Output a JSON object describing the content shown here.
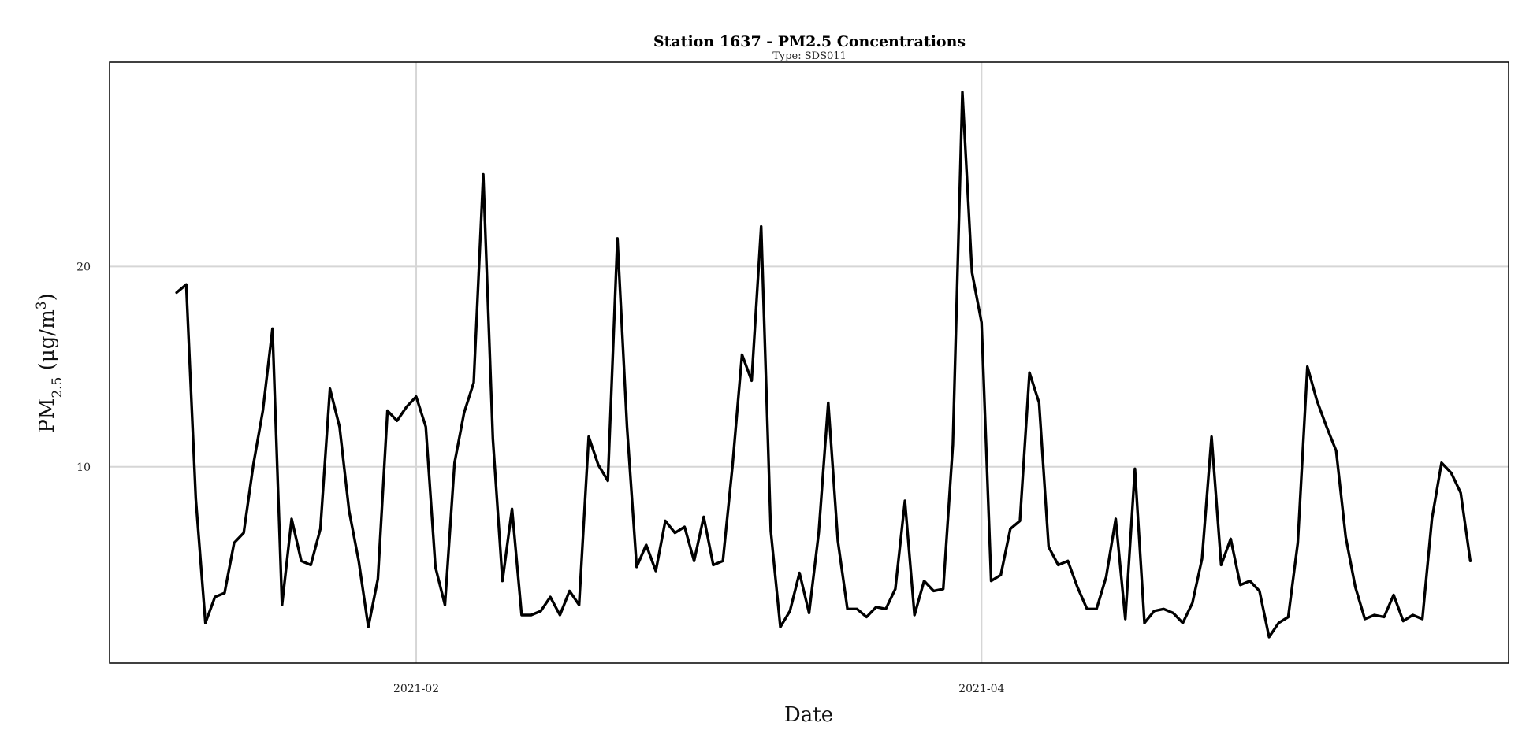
{
  "chart_data": {
    "type": "line",
    "title": "Station 1637 - PM2.5 Concentrations",
    "subtitle": "Type: SDS011",
    "xlabel": "Date",
    "ylabel": {
      "main": "PM",
      "sub": "2.5",
      "unit_prefix": " (μg/m",
      "unit_sup": "3",
      "unit_suffix": ")"
    },
    "x_start": "2021-01-07",
    "x_ticks": [
      {
        "label": "2021-02",
        "date": "2021-02-01"
      },
      {
        "label": "2021-04",
        "date": "2021-04-01"
      }
    ],
    "y_ticks": [
      10,
      20
    ],
    "ylim": [
      0.2,
      30.2
    ],
    "xlim": [
      "2020-12-31",
      "2021-05-26"
    ],
    "grid": true,
    "series": [
      {
        "values": [
          18.7,
          19.1,
          8.4,
          2.2,
          3.5,
          3.7,
          6.2,
          6.7,
          10.1,
          12.8,
          16.9,
          3.1,
          7.4,
          5.3,
          5.1,
          6.9,
          13.9,
          12.0,
          7.8,
          5.3,
          2.0,
          4.4,
          12.8,
          12.3,
          13.0,
          13.5,
          12.0,
          5.0,
          3.1,
          10.2,
          12.7,
          14.2,
          24.6,
          11.4,
          4.3,
          7.9,
          2.6,
          2.6,
          2.8,
          3.5,
          2.6,
          3.8,
          3.1,
          11.5,
          10.1,
          9.3,
          21.4,
          12.0,
          5.0,
          6.1,
          4.8,
          7.3,
          6.7,
          7.0,
          5.3,
          7.5,
          5.1,
          5.3,
          10.0,
          15.6,
          14.3,
          22.0,
          6.8,
          2.0,
          2.8,
          4.7,
          2.7,
          6.7,
          13.2,
          6.3,
          2.9,
          2.9,
          2.5,
          3.0,
          2.9,
          3.9,
          8.3,
          2.6,
          4.3,
          3.8,
          3.9,
          11.1,
          28.7,
          19.7,
          17.2,
          4.3,
          4.6,
          6.9,
          7.3,
          14.7,
          13.2,
          6.0,
          5.1,
          5.3,
          4.0,
          2.9,
          2.9,
          4.5,
          7.4,
          2.4,
          9.9,
          2.2,
          2.8,
          2.9,
          2.7,
          2.2,
          3.2,
          5.4,
          11.5,
          5.1,
          6.4,
          4.1,
          4.3,
          3.8,
          1.5,
          2.2,
          2.5,
          6.2,
          15.0,
          13.3,
          12.0,
          10.8,
          6.5,
          4.0,
          2.4,
          2.6,
          2.5,
          3.6,
          2.3,
          2.6,
          2.4,
          7.4,
          10.2,
          9.7,
          8.7,
          5.3
        ]
      }
    ]
  }
}
